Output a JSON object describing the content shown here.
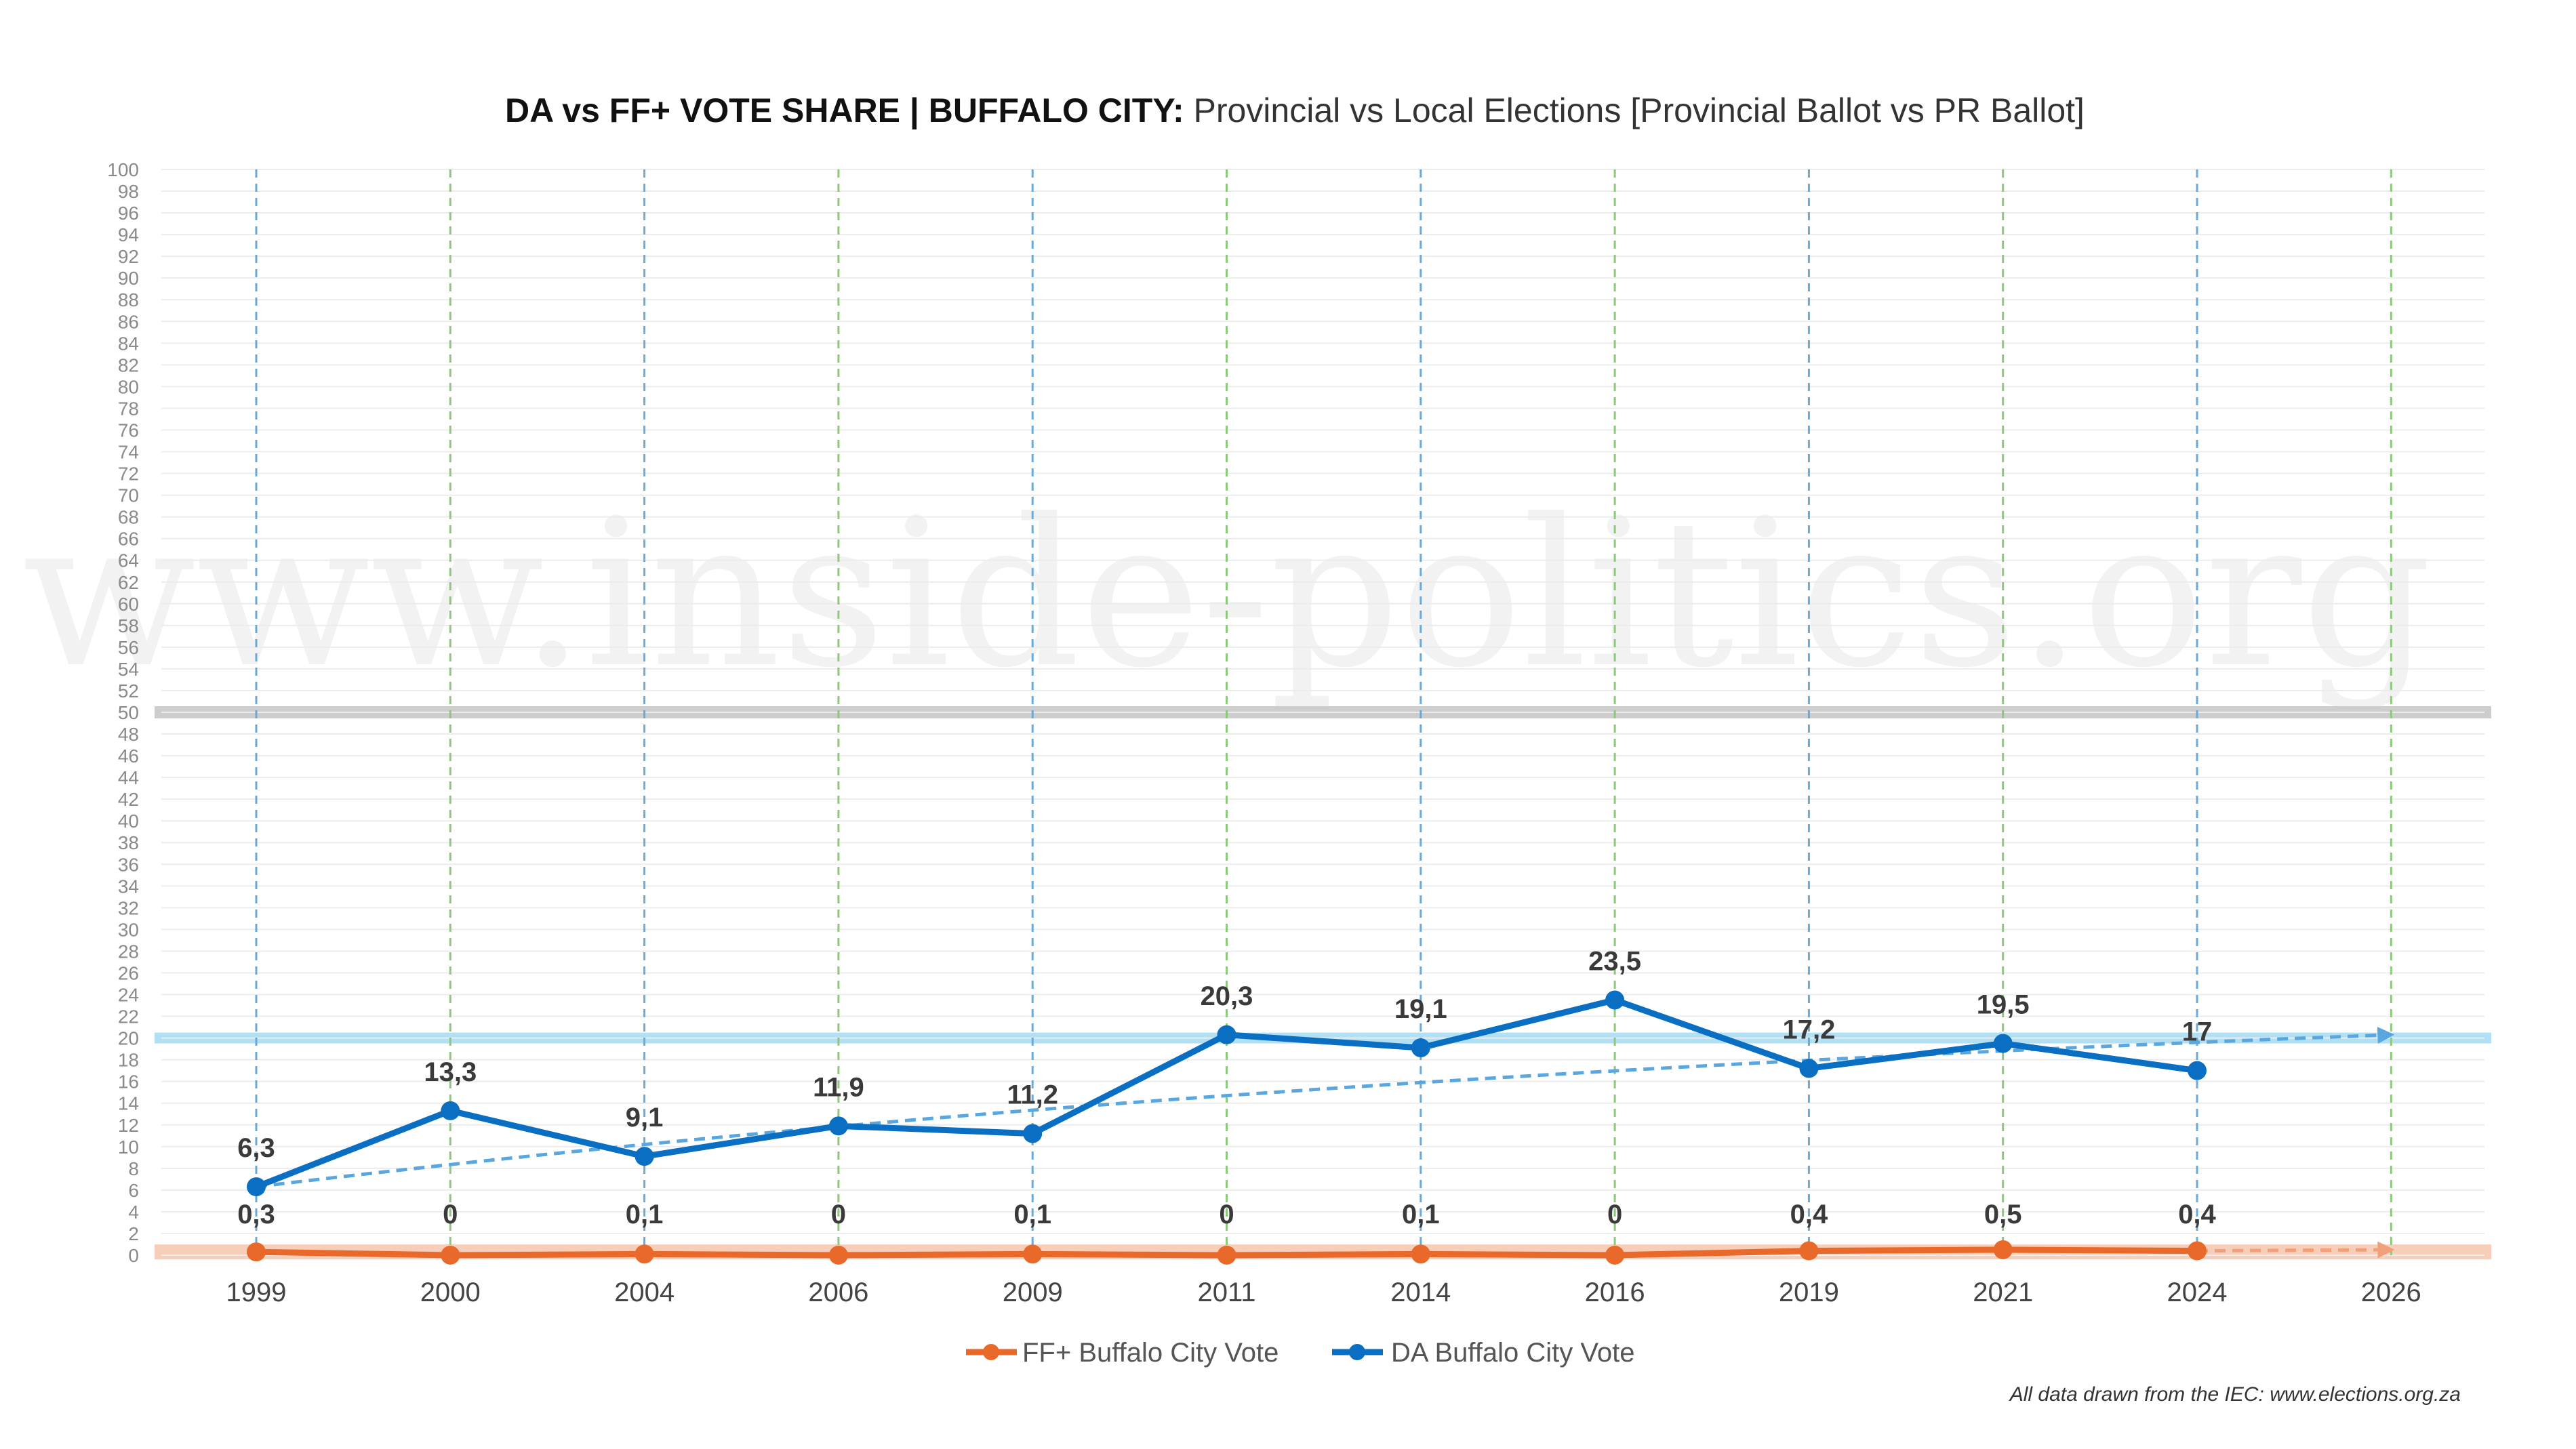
{
  "title": {
    "bold": "DA vs FF+ VOTE SHARE | BUFFALO CITY:",
    "rest": " Provincial vs Local Elections [Provincial Ballot vs PR Ballot]"
  },
  "watermark": "www.inside-politics.org",
  "source_note": "All data drawn from the IEC: www.elections.org.za",
  "chart_data": {
    "type": "line",
    "title": "DA vs FF+ VOTE SHARE | BUFFALO CITY: Provincial vs Local Elections [Provincial Ballot vs PR Ballot]",
    "xlabel": "",
    "ylabel": "",
    "categories": [
      "1999",
      "2000",
      "2004",
      "2006",
      "2009",
      "2011",
      "2014",
      "2016",
      "2019",
      "2021",
      "2024",
      "2026"
    ],
    "category_types": [
      "provincial",
      "local",
      "provincial",
      "local",
      "provincial",
      "local",
      "provincial",
      "local",
      "provincial",
      "local",
      "provincial",
      "local"
    ],
    "ylim": [
      0,
      100
    ],
    "ytick_step": 2,
    "grid": true,
    "legend_position": "bottom-center",
    "series": [
      {
        "name": "FF+ Buffalo City Vote",
        "color": "#e8692a",
        "values": [
          0.3,
          0,
          0.1,
          0,
          0.1,
          0,
          0.1,
          0,
          0.4,
          0.5,
          0.4,
          null
        ],
        "labels": [
          "0,3",
          "0",
          "0,1",
          "0",
          "0,1",
          "0",
          "0,1",
          "0",
          "0,4",
          "0,5",
          "0,4",
          ""
        ],
        "trend_end": 0.5
      },
      {
        "name": "DA Buffalo City Vote",
        "color": "#0a6fc2",
        "values": [
          6.3,
          13.3,
          9.1,
          11.9,
          11.2,
          20.3,
          19.1,
          23.5,
          17.2,
          19.5,
          17,
          null
        ],
        "labels": [
          "6,3",
          "13,3",
          "9,1",
          "11,9",
          "11,2",
          "20,3",
          "19,1",
          "23,5",
          "17,2",
          "19,5",
          "17",
          ""
        ],
        "trend_end": 20.3
      }
    ],
    "reference_bands": [
      {
        "value": 50,
        "color": "#c8c8c8"
      },
      {
        "value": 20,
        "color": "#a8ddf3"
      },
      {
        "value": 0.3,
        "color": "#f6c9b3"
      }
    ]
  }
}
